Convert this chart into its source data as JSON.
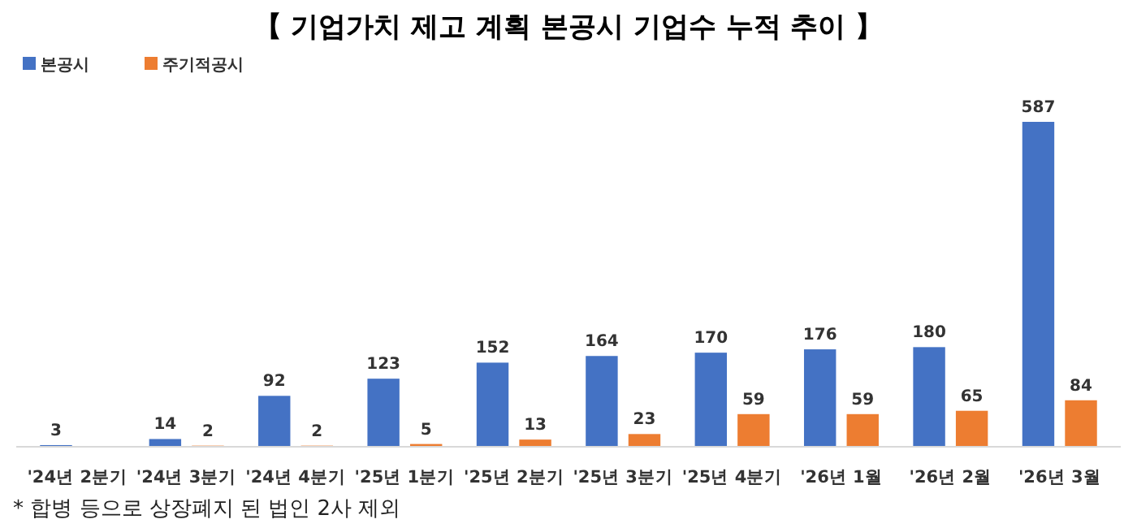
{
  "chart_data": {
    "type": "bar",
    "title": "【 기업가치 제고 계획 본공시 기업수 누적 추이 】",
    "categories": [
      "'24년 2분기",
      "'24년 3분기",
      "'24년 4분기",
      "'25년 1분기",
      "'25년 2분기",
      "'25년 3분기",
      "'25년 4분기",
      "'26년 1월",
      "'26년 2월",
      "'26년 3월"
    ],
    "series": [
      {
        "name": "본공시",
        "color": "#4472c4",
        "values": [
          3,
          14,
          92,
          123,
          152,
          164,
          170,
          176,
          180,
          587
        ]
      },
      {
        "name": "주기적공시",
        "color": "#ed7d31",
        "values": [
          null,
          2,
          2,
          5,
          13,
          23,
          59,
          59,
          65,
          84
        ]
      }
    ],
    "data_labels": true,
    "legend": "top left",
    "annotations": [
      "* 합병 등으로 상장폐지 된 법인 2사 제외"
    ]
  }
}
